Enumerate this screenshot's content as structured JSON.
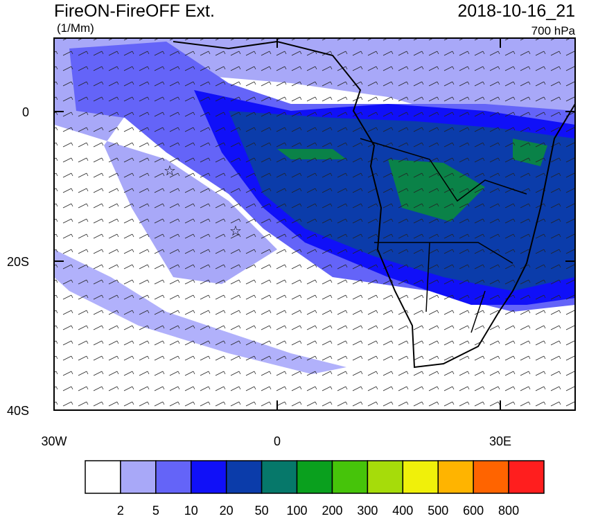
{
  "header": {
    "title": "FireON-FireOFF Ext.",
    "units": "(1/Mm)",
    "date": "2018-10-16_21",
    "level": "700 hPa"
  },
  "axes": {
    "lat_labels": [
      "0",
      "20S",
      "40S"
    ],
    "lon_labels": [
      "30W",
      "0",
      "30E"
    ]
  },
  "colorbar": {
    "colors": [
      "#ffffff",
      "#a8a8f8",
      "#6464f8",
      "#1010f8",
      "#0b3caa",
      "#06786a",
      "#0aa01e",
      "#46c40a",
      "#a6dc0a",
      "#f0f00a",
      "#ffb400",
      "#ff6400",
      "#ff1e1e"
    ],
    "labels": [
      "2",
      "5",
      "10",
      "20",
      "50",
      "100",
      "200",
      "300",
      "400",
      "500",
      "600",
      "800"
    ]
  }
}
